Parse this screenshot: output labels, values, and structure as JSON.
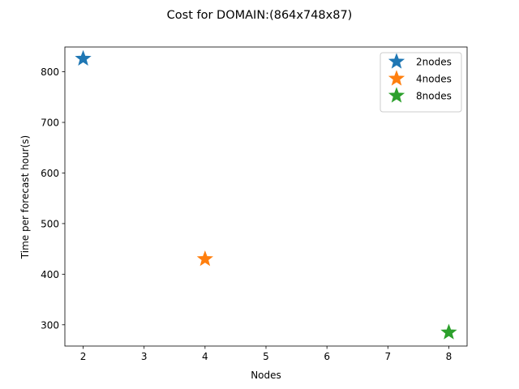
{
  "chart_data": {
    "type": "scatter",
    "title": "Cost for DOMAIN:(864x748x87)",
    "xlabel": "Nodes",
    "ylabel": "Time per forecast hour(s)",
    "xlim": [
      1.7,
      8.3
    ],
    "ylim": [
      258,
      849
    ],
    "xticks": [
      2,
      3,
      4,
      5,
      6,
      7,
      8
    ],
    "yticks": [
      300,
      400,
      500,
      600,
      700,
      800
    ],
    "marker": "star",
    "legend_position": "top-right",
    "grid": false,
    "series": [
      {
        "name": "2nodes",
        "color": "#1f77b4",
        "points": [
          {
            "x": 2,
            "y": 826
          }
        ]
      },
      {
        "name": "4nodes",
        "color": "#ff7f0e",
        "points": [
          {
            "x": 4,
            "y": 430
          }
        ]
      },
      {
        "name": "8nodes",
        "color": "#2ca02c",
        "points": [
          {
            "x": 8,
            "y": 285
          }
        ]
      }
    ]
  }
}
